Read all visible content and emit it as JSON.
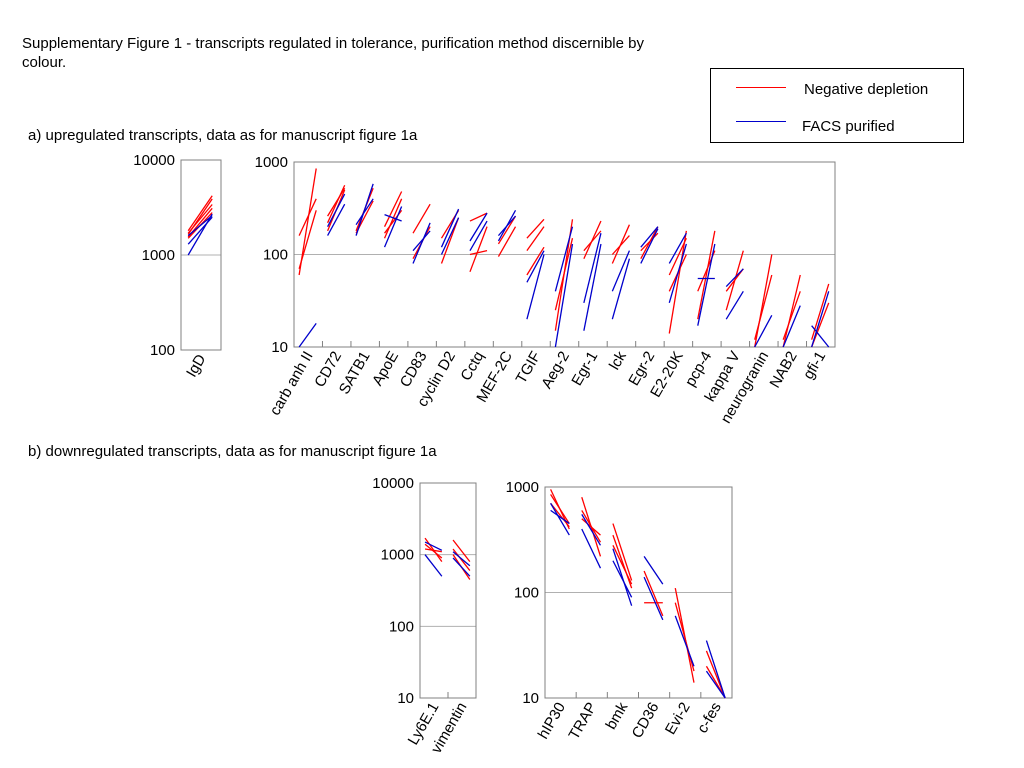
{
  "page": {
    "title": "Supplementary Figure 1 - transcripts regulated in tolerance, purification method discernible by colour.",
    "section_a": "a) upregulated transcripts, data as for manuscript figure 1a",
    "section_b": "b) downregulated transcripts, data as for manuscript figure 1a"
  },
  "legend": {
    "items": [
      {
        "label": "Negative depletion",
        "color": "#ff0000"
      },
      {
        "label": "FACS purified",
        "color": "#0000cc"
      }
    ]
  },
  "colors": {
    "negative_depletion": "#ff0000",
    "facs_purified": "#0000cc",
    "gridline": "#b0b0b0",
    "frame": "#808080"
  },
  "chart_data": [
    {
      "type": "line",
      "panel": "a-left",
      "categories": [
        "IgD"
      ],
      "yscale": "log",
      "ylim": [
        100,
        10000
      ],
      "yticks": [
        100,
        1000,
        10000
      ],
      "grid": "horizontal at 1000",
      "lines": [
        {
          "cat": 0,
          "y1": 1650,
          "y2": 3900,
          "series": "Negative depletion"
        },
        {
          "cat": 0,
          "y1": 1700,
          "y2": 3400,
          "series": "Negative depletion"
        },
        {
          "cat": 0,
          "y1": 1550,
          "y2": 3100,
          "series": "Negative depletion"
        },
        {
          "cat": 0,
          "y1": 1800,
          "y2": 4200,
          "series": "Negative depletion"
        },
        {
          "cat": 0,
          "y1": 1500,
          "y2": 2800,
          "series": "Negative depletion"
        },
        {
          "cat": 0,
          "y1": 1600,
          "y2": 2600,
          "series": "FACS purified"
        },
        {
          "cat": 0,
          "y1": 1300,
          "y2": 2500,
          "series": "FACS purified"
        },
        {
          "cat": 0,
          "y1": 1000,
          "y2": 2700,
          "series": "FACS purified"
        }
      ]
    },
    {
      "type": "line",
      "panel": "a-right",
      "categories": [
        "carb anh II",
        "CD72",
        "SATB1",
        "ApoE",
        "CD83",
        "cyclin D2",
        "Cctq",
        "MEF-2C",
        "TGIF",
        "Aeg-2",
        "Egr-1",
        "lck",
        "Egr-2",
        "E2-20K",
        "pcp-4",
        "kappa V",
        "neurogranin",
        "NAB2",
        "gfi-1"
      ],
      "yscale": "log",
      "ylim": [
        10,
        1000
      ],
      "yticks": [
        10,
        100,
        1000
      ],
      "grid": "horizontal at 100",
      "lines": [
        {
          "cat": 0,
          "y1": 60,
          "y2": 850,
          "series": "Negative depletion"
        },
        {
          "cat": 0,
          "y1": 160,
          "y2": 400,
          "series": "Negative depletion"
        },
        {
          "cat": 0,
          "y1": 70,
          "y2": 300,
          "series": "Negative depletion"
        },
        {
          "cat": 0,
          "y1": 10,
          "y2": 18,
          "series": "FACS purified"
        },
        {
          "cat": 1,
          "y1": 220,
          "y2": 560,
          "series": "Negative depletion"
        },
        {
          "cat": 1,
          "y1": 180,
          "y2": 500,
          "series": "Negative depletion"
        },
        {
          "cat": 1,
          "y1": 260,
          "y2": 520,
          "series": "Negative depletion"
        },
        {
          "cat": 1,
          "y1": 160,
          "y2": 350,
          "series": "FACS purified"
        },
        {
          "cat": 1,
          "y1": 200,
          "y2": 450,
          "series": "FACS purified"
        },
        {
          "cat": 2,
          "y1": 180,
          "y2": 520,
          "series": "Negative depletion"
        },
        {
          "cat": 2,
          "y1": 170,
          "y2": 380,
          "series": "Negative depletion"
        },
        {
          "cat": 2,
          "y1": 160,
          "y2": 580,
          "series": "FACS purified"
        },
        {
          "cat": 2,
          "y1": 210,
          "y2": 400,
          "series": "FACS purified"
        },
        {
          "cat": 3,
          "y1": 200,
          "y2": 480,
          "series": "Negative depletion"
        },
        {
          "cat": 3,
          "y1": 170,
          "y2": 300,
          "series": "Negative depletion"
        },
        {
          "cat": 3,
          "y1": 150,
          "y2": 400,
          "series": "Negative depletion"
        },
        {
          "cat": 3,
          "y1": 270,
          "y2": 230,
          "series": "FACS purified"
        },
        {
          "cat": 3,
          "y1": 120,
          "y2": 330,
          "series": "FACS purified"
        },
        {
          "cat": 4,
          "y1": 170,
          "y2": 350,
          "series": "Negative depletion"
        },
        {
          "cat": 4,
          "y1": 90,
          "y2": 200,
          "series": "Negative depletion"
        },
        {
          "cat": 4,
          "y1": 80,
          "y2": 220,
          "series": "FACS purified"
        },
        {
          "cat": 4,
          "y1": 110,
          "y2": 180,
          "series": "FACS purified"
        },
        {
          "cat": 5,
          "y1": 150,
          "y2": 300,
          "series": "Negative depletion"
        },
        {
          "cat": 5,
          "y1": 80,
          "y2": 250,
          "series": "Negative depletion"
        },
        {
          "cat": 5,
          "y1": 120,
          "y2": 310,
          "series": "FACS purified"
        },
        {
          "cat": 5,
          "y1": 100,
          "y2": 250,
          "series": "FACS purified"
        },
        {
          "cat": 6,
          "y1": 230,
          "y2": 280,
          "series": "Negative depletion"
        },
        {
          "cat": 6,
          "y1": 65,
          "y2": 200,
          "series": "Negative depletion"
        },
        {
          "cat": 6,
          "y1": 100,
          "y2": 110,
          "series": "Negative depletion"
        },
        {
          "cat": 6,
          "y1": 140,
          "y2": 280,
          "series": "FACS purified"
        },
        {
          "cat": 6,
          "y1": 110,
          "y2": 230,
          "series": "FACS purified"
        },
        {
          "cat": 7,
          "y1": 130,
          "y2": 260,
          "series": "Negative depletion"
        },
        {
          "cat": 7,
          "y1": 95,
          "y2": 200,
          "series": "Negative depletion"
        },
        {
          "cat": 7,
          "y1": 140,
          "y2": 300,
          "series": "FACS purified"
        },
        {
          "cat": 7,
          "y1": 160,
          "y2": 260,
          "series": "FACS purified"
        },
        {
          "cat": 8,
          "y1": 150,
          "y2": 240,
          "series": "Negative depletion"
        },
        {
          "cat": 8,
          "y1": 60,
          "y2": 120,
          "series": "Negative depletion"
        },
        {
          "cat": 8,
          "y1": 110,
          "y2": 200,
          "series": "Negative depletion"
        },
        {
          "cat": 8,
          "y1": 20,
          "y2": 100,
          "series": "FACS purified"
        },
        {
          "cat": 8,
          "y1": 50,
          "y2": 110,
          "series": "FACS purified"
        },
        {
          "cat": 9,
          "y1": 15,
          "y2": 240,
          "series": "Negative depletion"
        },
        {
          "cat": 9,
          "y1": 25,
          "y2": 150,
          "series": "Negative depletion"
        },
        {
          "cat": 9,
          "y1": 10,
          "y2": 130,
          "series": "FACS purified"
        },
        {
          "cat": 9,
          "y1": 40,
          "y2": 200,
          "series": "FACS purified"
        },
        {
          "cat": 10,
          "y1": 90,
          "y2": 230,
          "series": "Negative depletion"
        },
        {
          "cat": 10,
          "y1": 110,
          "y2": 180,
          "series": "Negative depletion"
        },
        {
          "cat": 10,
          "y1": 15,
          "y2": 130,
          "series": "FACS purified"
        },
        {
          "cat": 10,
          "y1": 30,
          "y2": 170,
          "series": "FACS purified"
        },
        {
          "cat": 11,
          "y1": 80,
          "y2": 210,
          "series": "Negative depletion"
        },
        {
          "cat": 11,
          "y1": 100,
          "y2": 160,
          "series": "Negative depletion"
        },
        {
          "cat": 11,
          "y1": 20,
          "y2": 90,
          "series": "FACS purified"
        },
        {
          "cat": 11,
          "y1": 40,
          "y2": 110,
          "series": "FACS purified"
        },
        {
          "cat": 12,
          "y1": 90,
          "y2": 200,
          "series": "Negative depletion"
        },
        {
          "cat": 12,
          "y1": 110,
          "y2": 170,
          "series": "Negative depletion"
        },
        {
          "cat": 12,
          "y1": 80,
          "y2": 190,
          "series": "FACS purified"
        },
        {
          "cat": 12,
          "y1": 120,
          "y2": 200,
          "series": "FACS purified"
        },
        {
          "cat": 13,
          "y1": 14,
          "y2": 180,
          "series": "Negative depletion"
        },
        {
          "cat": 13,
          "y1": 40,
          "y2": 100,
          "series": "Negative depletion"
        },
        {
          "cat": 13,
          "y1": 60,
          "y2": 150,
          "series": "Negative depletion"
        },
        {
          "cat": 13,
          "y1": 30,
          "y2": 130,
          "series": "FACS purified"
        },
        {
          "cat": 13,
          "y1": 80,
          "y2": 170,
          "series": "FACS purified"
        },
        {
          "cat": 14,
          "y1": 20,
          "y2": 180,
          "series": "Negative depletion"
        },
        {
          "cat": 14,
          "y1": 40,
          "y2": 110,
          "series": "Negative depletion"
        },
        {
          "cat": 14,
          "y1": 17,
          "y2": 130,
          "series": "FACS purified"
        },
        {
          "cat": 14,
          "y1": 55,
          "y2": 55,
          "series": "FACS purified"
        },
        {
          "cat": 15,
          "y1": 25,
          "y2": 110,
          "series": "Negative depletion"
        },
        {
          "cat": 15,
          "y1": 40,
          "y2": 70,
          "series": "Negative depletion"
        },
        {
          "cat": 15,
          "y1": 20,
          "y2": 40,
          "series": "FACS purified"
        },
        {
          "cat": 15,
          "y1": 45,
          "y2": 70,
          "series": "FACS purified"
        },
        {
          "cat": 16,
          "y1": 10,
          "y2": 100,
          "series": "Negative depletion"
        },
        {
          "cat": 16,
          "y1": 12,
          "y2": 60,
          "series": "Negative depletion"
        },
        {
          "cat": 16,
          "y1": 10,
          "y2": 22,
          "series": "FACS purified"
        },
        {
          "cat": 17,
          "y1": 10,
          "y2": 60,
          "series": "Negative depletion"
        },
        {
          "cat": 17,
          "y1": 12,
          "y2": 40,
          "series": "Negative depletion"
        },
        {
          "cat": 17,
          "y1": 10,
          "y2": 28,
          "series": "FACS purified"
        },
        {
          "cat": 18,
          "y1": 12,
          "y2": 48,
          "series": "Negative depletion"
        },
        {
          "cat": 18,
          "y1": 10,
          "y2": 30,
          "series": "Negative depletion"
        },
        {
          "cat": 18,
          "y1": 17,
          "y2": 10,
          "series": "FACS purified"
        },
        {
          "cat": 18,
          "y1": 10,
          "y2": 40,
          "series": "FACS purified"
        }
      ]
    },
    {
      "type": "line",
      "panel": "b-left",
      "categories": [
        "Ly6E.1",
        "vimentin"
      ],
      "yscale": "log",
      "ylim": [
        10,
        10000
      ],
      "yticks": [
        10,
        100,
        1000,
        10000
      ],
      "grid": "horizontal at 100 and 1000",
      "lines": [
        {
          "cat": 0,
          "y1": 1700,
          "y2": 800,
          "series": "Negative depletion"
        },
        {
          "cat": 0,
          "y1": 1400,
          "y2": 900,
          "series": "Negative depletion"
        },
        {
          "cat": 0,
          "y1": 1200,
          "y2": 1100,
          "series": "Negative depletion"
        },
        {
          "cat": 0,
          "y1": 1000,
          "y2": 500,
          "series": "FACS purified"
        },
        {
          "cat": 0,
          "y1": 1500,
          "y2": 1150,
          "series": "FACS purified"
        },
        {
          "cat": 1,
          "y1": 1600,
          "y2": 800,
          "series": "Negative depletion"
        },
        {
          "cat": 1,
          "y1": 1000,
          "y2": 450,
          "series": "Negative depletion"
        },
        {
          "cat": 1,
          "y1": 1200,
          "y2": 600,
          "series": "Negative depletion"
        },
        {
          "cat": 1,
          "y1": 900,
          "y2": 500,
          "series": "FACS purified"
        },
        {
          "cat": 1,
          "y1": 1100,
          "y2": 700,
          "series": "FACS purified"
        }
      ]
    },
    {
      "type": "line",
      "panel": "b-right",
      "categories": [
        "hIP30",
        "TRAP",
        "bmk",
        "CD36",
        "Evi-2",
        "c-fes"
      ],
      "yscale": "log",
      "ylim": [
        10,
        1000
      ],
      "yticks": [
        10,
        100,
        1000
      ],
      "grid": "horizontal at 100",
      "lines": [
        {
          "cat": 0,
          "y1": 950,
          "y2": 400,
          "series": "Negative depletion"
        },
        {
          "cat": 0,
          "y1": 850,
          "y2": 450,
          "series": "Negative depletion"
        },
        {
          "cat": 0,
          "y1": 700,
          "y2": 420,
          "series": "Negative depletion"
        },
        {
          "cat": 0,
          "y1": 700,
          "y2": 350,
          "series": "FACS purified"
        },
        {
          "cat": 0,
          "y1": 600,
          "y2": 450,
          "series": "FACS purified"
        },
        {
          "cat": 1,
          "y1": 800,
          "y2": 220,
          "series": "Negative depletion"
        },
        {
          "cat": 1,
          "y1": 600,
          "y2": 300,
          "series": "Negative depletion"
        },
        {
          "cat": 1,
          "y1": 500,
          "y2": 350,
          "series": "Negative depletion"
        },
        {
          "cat": 1,
          "y1": 400,
          "y2": 170,
          "series": "FACS purified"
        },
        {
          "cat": 1,
          "y1": 550,
          "y2": 280,
          "series": "FACS purified"
        },
        {
          "cat": 2,
          "y1": 450,
          "y2": 130,
          "series": "Negative depletion"
        },
        {
          "cat": 2,
          "y1": 350,
          "y2": 110,
          "series": "Negative depletion"
        },
        {
          "cat": 2,
          "y1": 280,
          "y2": 120,
          "series": "Negative depletion"
        },
        {
          "cat": 2,
          "y1": 260,
          "y2": 75,
          "series": "FACS purified"
        },
        {
          "cat": 2,
          "y1": 200,
          "y2": 90,
          "series": "FACS purified"
        },
        {
          "cat": 3,
          "y1": 80,
          "y2": 80,
          "series": "Negative depletion"
        },
        {
          "cat": 3,
          "y1": 160,
          "y2": 60,
          "series": "Negative depletion"
        },
        {
          "cat": 3,
          "y1": 220,
          "y2": 120,
          "series": "FACS purified"
        },
        {
          "cat": 3,
          "y1": 140,
          "y2": 55,
          "series": "FACS purified"
        },
        {
          "cat": 4,
          "y1": 110,
          "y2": 14,
          "series": "Negative depletion"
        },
        {
          "cat": 4,
          "y1": 80,
          "y2": 18,
          "series": "Negative depletion"
        },
        {
          "cat": 4,
          "y1": 60,
          "y2": 20,
          "series": "FACS purified"
        },
        {
          "cat": 5,
          "y1": 28,
          "y2": 10,
          "series": "Negative depletion"
        },
        {
          "cat": 5,
          "y1": 20,
          "y2": 10,
          "series": "Negative depletion"
        },
        {
          "cat": 5,
          "y1": 35,
          "y2": 10,
          "series": "FACS purified"
        },
        {
          "cat": 5,
          "y1": 18,
          "y2": 10,
          "series": "FACS purified"
        }
      ]
    }
  ]
}
